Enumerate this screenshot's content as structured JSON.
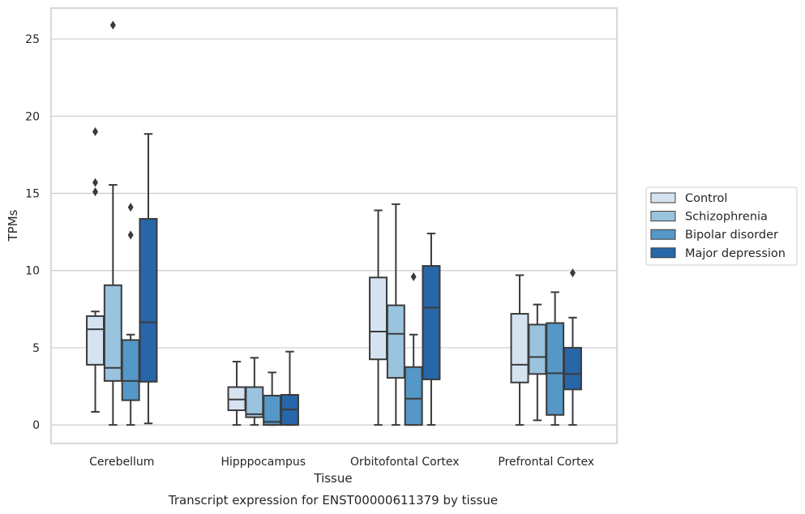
{
  "chart_data": {
    "type": "box",
    "title": "",
    "caption": "Transcript expression for ENST00000611379 by tissue",
    "xlabel": "Tissue",
    "ylabel": "TPMs",
    "ylim": [
      -1.2,
      27
    ],
    "yticks": [
      0,
      5,
      10,
      15,
      20,
      25
    ],
    "grid": "horizontal",
    "legend_position": "right",
    "categories": [
      "Cerebellum",
      "Hipppocampus",
      "Orbitofontal Cortex",
      "Prefrontal Cortex"
    ],
    "series": [
      {
        "name": "Control",
        "color": "#d5e3f1",
        "boxes": [
          {
            "whisker_low": 0.85,
            "q1": 3.9,
            "median": 6.2,
            "q3": 7.05,
            "whisker_high": 7.35,
            "outliers": [
              15.1,
              15.7,
              19.0
            ]
          },
          {
            "whisker_low": 0.0,
            "q1": 0.95,
            "median": 1.65,
            "q3": 2.45,
            "whisker_high": 4.1,
            "outliers": []
          },
          {
            "whisker_low": 0.0,
            "q1": 4.25,
            "median": 6.05,
            "q3": 9.55,
            "whisker_high": 13.9,
            "outliers": []
          },
          {
            "whisker_low": 0.0,
            "q1": 2.75,
            "median": 3.9,
            "q3": 7.2,
            "whisker_high": 9.7,
            "outliers": []
          }
        ]
      },
      {
        "name": "Schizophrenia",
        "color": "#9ac3de",
        "boxes": [
          {
            "whisker_low": 0.0,
            "q1": 2.85,
            "median": 3.7,
            "q3": 9.05,
            "whisker_high": 15.55,
            "outliers": [
              25.9
            ]
          },
          {
            "whisker_low": 0.0,
            "q1": 0.5,
            "median": 0.7,
            "q3": 2.45,
            "whisker_high": 4.35,
            "outliers": []
          },
          {
            "whisker_low": 0.0,
            "q1": 3.05,
            "median": 5.9,
            "q3": 7.75,
            "whisker_high": 14.3,
            "outliers": []
          },
          {
            "whisker_low": 0.3,
            "q1": 3.3,
            "median": 4.4,
            "q3": 6.5,
            "whisker_high": 7.8,
            "outliers": []
          }
        ]
      },
      {
        "name": "Bipolar disorder",
        "color": "#5597c6",
        "boxes": [
          {
            "whisker_low": 0.0,
            "q1": 1.6,
            "median": 2.85,
            "q3": 5.5,
            "whisker_high": 5.85,
            "outliers": [
              12.3,
              14.1
            ]
          },
          {
            "whisker_low": 0.0,
            "q1": 0.0,
            "median": 0.2,
            "q3": 1.9,
            "whisker_high": 3.4,
            "outliers": []
          },
          {
            "whisker_low": 0.0,
            "q1": 0.0,
            "median": 1.7,
            "q3": 3.75,
            "whisker_high": 5.85,
            "outliers": [
              9.6
            ]
          },
          {
            "whisker_low": 0.0,
            "q1": 0.65,
            "median": 3.35,
            "q3": 6.6,
            "whisker_high": 8.6,
            "outliers": []
          }
        ]
      },
      {
        "name": "Major depression",
        "color": "#2766a8",
        "boxes": [
          {
            "whisker_low": 0.1,
            "q1": 2.8,
            "median": 6.65,
            "q3": 13.35,
            "whisker_high": 18.85,
            "outliers": []
          },
          {
            "whisker_low": 0.0,
            "q1": 0.0,
            "median": 1.0,
            "q3": 1.95,
            "whisker_high": 4.75,
            "outliers": []
          },
          {
            "whisker_low": 0.0,
            "q1": 2.95,
            "median": 7.6,
            "q3": 10.3,
            "whisker_high": 12.4,
            "outliers": []
          },
          {
            "whisker_low": 0.0,
            "q1": 2.3,
            "median": 3.3,
            "q3": 5.0,
            "whisker_high": 6.95,
            "outliers": [
              9.85
            ]
          }
        ]
      }
    ]
  },
  "style": {
    "line_color": "#3b3b3b",
    "grid_color": "#cccccc",
    "frame_color": "#cccccc",
    "text_color": "#262626"
  }
}
